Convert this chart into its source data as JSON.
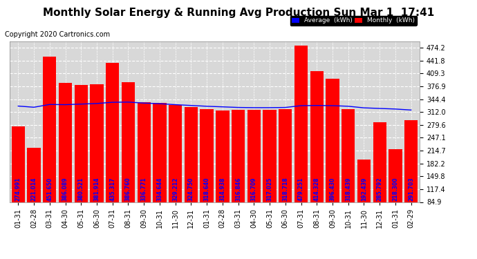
{
  "title": "Monthly Solar Energy & Running Avg Production Sun Mar 1  17:41",
  "copyright": "Copyright 2020 Cartronics.com",
  "categories": [
    "01-31",
    "02-28",
    "03-31",
    "04-30",
    "05-31",
    "06-30",
    "07-31",
    "08-31",
    "09-30",
    "10-31",
    "11-30",
    "12-31",
    "01-31",
    "02-28",
    "03-31",
    "04-30",
    "05-31",
    "06-30",
    "07-31",
    "08-31",
    "09-30",
    "10-31",
    "11-30",
    "12-31",
    "01-31",
    "02-29"
  ],
  "monthly_values": [
    274.991,
    221.014,
    451.65,
    386.089,
    380.521,
    381.914,
    435.317,
    386.76,
    336.771,
    334.644,
    329.212,
    324.75,
    318.64,
    314.938,
    316.846,
    316.709,
    317.025,
    318.718,
    479.251,
    414.328,
    396.43,
    318.439,
    192.439,
    285.792,
    218.3,
    291.703
  ],
  "running_avg": [
    327.0,
    324.0,
    331.0,
    330.5,
    332.0,
    333.5,
    336.5,
    337.0,
    334.5,
    333.0,
    330.5,
    328.5,
    326.5,
    325.0,
    323.5,
    323.0,
    323.0,
    323.5,
    328.0,
    328.5,
    328.0,
    326.5,
    322.5,
    321.0,
    319.5,
    317.0
  ],
  "bar_color": "#ff0000",
  "bar_label_color": "#0000ff",
  "line_color": "#0000ff",
  "bg_color": "#ffffff",
  "plot_bg_color": "#d8d8d8",
  "grid_color": "#ffffff",
  "ylim_min": 84.9,
  "ylim_max": 490.0,
  "yticks": [
    84.9,
    117.4,
    149.8,
    182.2,
    214.7,
    247.1,
    279.6,
    312.0,
    344.4,
    376.9,
    409.3,
    441.8,
    474.2
  ],
  "legend_avg_label": "Average  (kWh)",
  "legend_monthly_label": "Monthly  (kWh)",
  "legend_avg_bg": "#0000ff",
  "legend_monthly_bg": "#ff0000",
  "title_fontsize": 11,
  "bar_label_fontsize": 5.5,
  "axis_label_fontsize": 7,
  "copyright_fontsize": 7
}
